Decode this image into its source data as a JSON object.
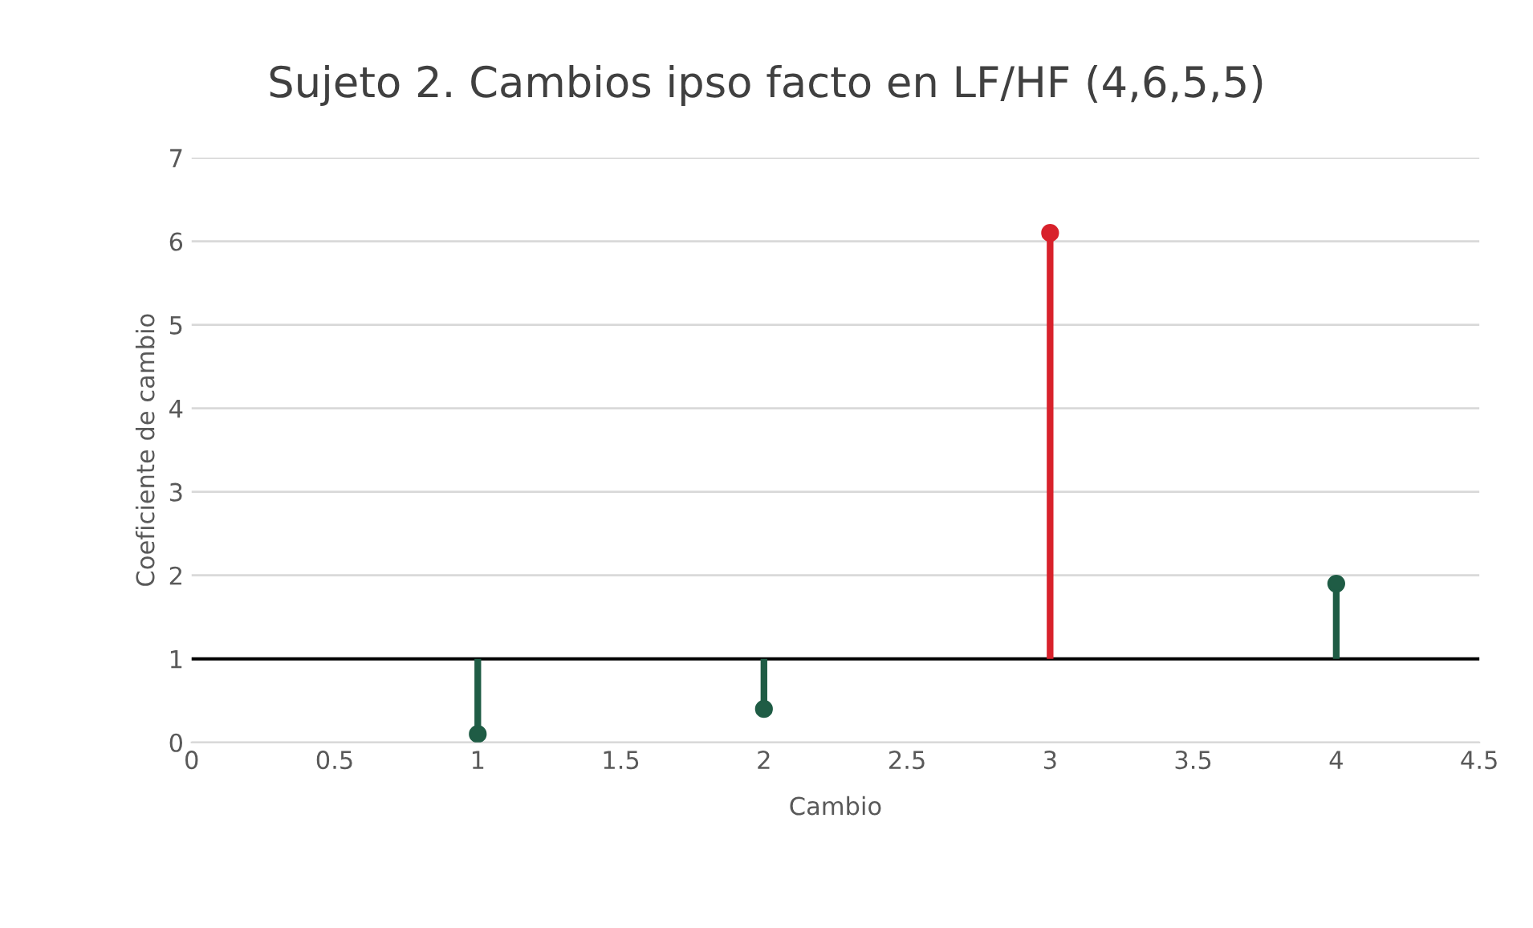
{
  "chart_data": {
    "type": "lollipop",
    "title": "Sujeto 2. Cambios ipso facto en LF/HF (4,6,5,5)",
    "xlabel": "Cambio",
    "ylabel": "Coeficiente de cambio",
    "x": [
      1,
      2,
      3,
      4
    ],
    "values": [
      0.1,
      0.4,
      6.1,
      1.9
    ],
    "errors": [
      [
        0.1,
        1
      ],
      [
        0.4,
        1
      ],
      [
        1,
        6.1
      ],
      [
        1,
        1.9
      ]
    ],
    "colors": [
      "#1f5c45",
      "#1f5c45",
      "#d8212b",
      "#1f5c45"
    ],
    "xlim": [
      0,
      4.5
    ],
    "xticks": [
      0,
      0.5,
      1,
      1.5,
      2,
      2.5,
      3,
      3.5,
      4,
      4.5
    ],
    "ylim": [
      0,
      7
    ],
    "yticks": [
      0,
      1,
      2,
      3,
      4,
      5,
      6,
      7
    ],
    "ref_lines": [
      {
        "axis": "y",
        "value": 1,
        "label": null,
        "color": "#000000"
      }
    ],
    "grid": "y",
    "marker": "circle"
  }
}
